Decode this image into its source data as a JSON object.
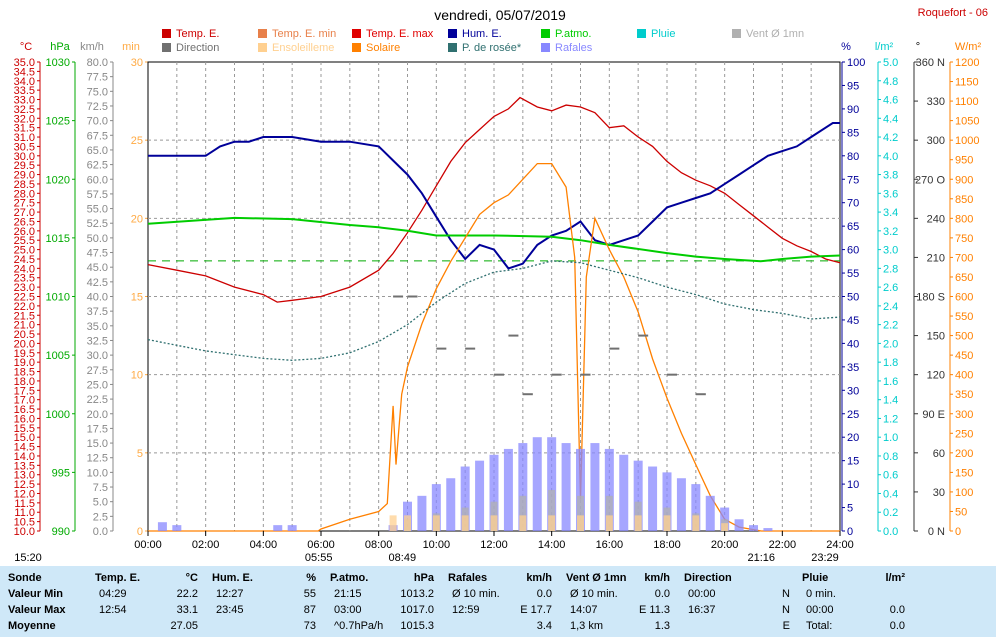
{
  "title": "vendredi, 05/07/2019",
  "station": "Roquefort - 06",
  "unit_headers": [
    "°C",
    "hPa",
    "km/h",
    "min",
    "%",
    "l/m²",
    "°",
    "W/m²"
  ],
  "legend": [
    {
      "label": "Temp. E.",
      "color": "#cc0000"
    },
    {
      "label": "Temp. E. min",
      "color": "#e8804a"
    },
    {
      "label": "Temp. E. max",
      "color": "#e00000"
    },
    {
      "label": "P.atmo.",
      "color": "#00cc00"
    },
    {
      "label": "Pluie",
      "color": "#00cccc"
    },
    {
      "label": "Vent Ø 1mn",
      "color": "#b0b0b0"
    },
    {
      "label": "Hum. E.",
      "color": "#000099"
    },
    {
      "label": "Direction",
      "color": "#707070"
    },
    {
      "label": "Ensoleilleme",
      "color": "#ffd090"
    },
    {
      "label": "Solaire",
      "color": "#ff8000"
    },
    {
      "label": "P. de rosée*",
      "color": "#307070"
    },
    {
      "label": "Rafales",
      "color": "#8888ff"
    }
  ],
  "chart_data": {
    "type": "line",
    "x_ticks": [
      "00:00",
      "02:00",
      "04:00",
      "06:00",
      "08:00",
      "10:00",
      "12:00",
      "14:00",
      "16:00",
      "18:00",
      "20:00",
      "22:00",
      "24:00"
    ],
    "axes": {
      "temp_c": {
        "min": 10.0,
        "max": 35.0,
        "step": 0.5
      },
      "pressure_hpa": {
        "min": 990,
        "max": 1030
      },
      "wind_kmh": {
        "min": 0.0,
        "max": 80.0,
        "step": 2.5
      },
      "sunshine_min": {
        "min": 0,
        "max": 30
      },
      "humidity_pct": {
        "min": 0,
        "max": 100
      },
      "rain_lm2": {
        "min": 0.0,
        "max": 5.0
      },
      "direction_deg": {
        "min": 0,
        "max": 360,
        "labels": [
          [
            0,
            "0  N"
          ],
          [
            30,
            "30"
          ],
          [
            60,
            "60"
          ],
          [
            90,
            "90  E"
          ],
          [
            120,
            "120"
          ],
          [
            150,
            "150"
          ],
          [
            180,
            "180  S"
          ],
          [
            210,
            "210"
          ],
          [
            240,
            "240"
          ],
          [
            270,
            "270  O"
          ],
          [
            300,
            "300"
          ],
          [
            330,
            "330"
          ],
          [
            360,
            "360  N"
          ]
        ]
      },
      "solar_wm2": {
        "min": 0,
        "max": 1200
      }
    },
    "dewpoint_ref_c": 24.4,
    "series": [
      {
        "name": "Temp. E.",
        "axis": "temp_c",
        "color": "#cc0000",
        "points": [
          [
            0,
            24.2
          ],
          [
            1,
            23.9
          ],
          [
            2,
            23.6
          ],
          [
            3,
            23.0
          ],
          [
            4,
            22.6
          ],
          [
            4.48,
            22.2
          ],
          [
            5,
            22.3
          ],
          [
            6,
            22.5
          ],
          [
            7,
            23.0
          ],
          [
            8,
            23.9
          ],
          [
            8.5,
            24.8
          ],
          [
            9,
            25.9
          ],
          [
            9.5,
            27.1
          ],
          [
            10,
            28.4
          ],
          [
            10.5,
            29.7
          ],
          [
            11,
            30.7
          ],
          [
            11.5,
            31.4
          ],
          [
            12,
            32.1
          ],
          [
            12.5,
            32.5
          ],
          [
            12.9,
            33.1
          ],
          [
            13.5,
            32.6
          ],
          [
            14,
            32.4
          ],
          [
            14.5,
            32.7
          ],
          [
            15,
            32.6
          ],
          [
            15.5,
            32.3
          ],
          [
            16,
            31.5
          ],
          [
            16.5,
            31.6
          ],
          [
            17,
            31.0
          ],
          [
            17.5,
            30.5
          ],
          [
            18,
            29.7
          ],
          [
            18.5,
            29.1
          ],
          [
            19,
            28.7
          ],
          [
            19.5,
            28.4
          ],
          [
            20,
            28.0
          ],
          [
            20.5,
            27.4
          ],
          [
            21,
            26.8
          ],
          [
            21.5,
            26.2
          ],
          [
            22,
            25.6
          ],
          [
            22.5,
            25.2
          ],
          [
            23,
            24.9
          ],
          [
            23.5,
            24.5
          ],
          [
            24,
            24.3
          ]
        ]
      },
      {
        "name": "Hum. E.",
        "axis": "humidity_pct",
        "color": "#000099",
        "points": [
          [
            0,
            80
          ],
          [
            1,
            80
          ],
          [
            2,
            80
          ],
          [
            2.5,
            82
          ],
          [
            3,
            83
          ],
          [
            3.5,
            83
          ],
          [
            4,
            84
          ],
          [
            5,
            84
          ],
          [
            6,
            83
          ],
          [
            7,
            83
          ],
          [
            8,
            82
          ],
          [
            8.5,
            79
          ],
          [
            9,
            76
          ],
          [
            9.5,
            72
          ],
          [
            10,
            67
          ],
          [
            10.5,
            62
          ],
          [
            11,
            58
          ],
          [
            11.5,
            61
          ],
          [
            12,
            60
          ],
          [
            12.5,
            56
          ],
          [
            13,
            57
          ],
          [
            13.5,
            61
          ],
          [
            14,
            63
          ],
          [
            14.5,
            64
          ],
          [
            15,
            66
          ],
          [
            15.5,
            62
          ],
          [
            16,
            61
          ],
          [
            16.5,
            62
          ],
          [
            17,
            63
          ],
          [
            17.5,
            66
          ],
          [
            18,
            69
          ],
          [
            18.5,
            70
          ],
          [
            19,
            71
          ],
          [
            19.5,
            72
          ],
          [
            20,
            74
          ],
          [
            20.5,
            76
          ],
          [
            21,
            78
          ],
          [
            21.5,
            80
          ],
          [
            22,
            81
          ],
          [
            22.5,
            82
          ],
          [
            23,
            84
          ],
          [
            23.75,
            87
          ],
          [
            24,
            87
          ]
        ]
      },
      {
        "name": "P.atmo.",
        "axis": "pressure_hpa",
        "color": "#00cc00",
        "points": [
          [
            0,
            1016.2
          ],
          [
            3,
            1016.7
          ],
          [
            5,
            1016.6
          ],
          [
            7,
            1016.1
          ],
          [
            8,
            1015.9
          ],
          [
            9,
            1015.6
          ],
          [
            10,
            1015.2
          ],
          [
            12,
            1015.2
          ],
          [
            14,
            1015.1
          ],
          [
            15,
            1014.8
          ],
          [
            16,
            1014.4
          ],
          [
            18,
            1013.7
          ],
          [
            19,
            1013.4
          ],
          [
            20,
            1013.2
          ],
          [
            21.25,
            1013.0
          ],
          [
            22,
            1013.2
          ],
          [
            23,
            1013.4
          ],
          [
            24,
            1013.5
          ]
        ]
      },
      {
        "name": "Solaire",
        "axis": "solar_wm2",
        "color": "#ff8000",
        "points": [
          [
            0,
            0
          ],
          [
            5.9,
            0
          ],
          [
            6,
            5
          ],
          [
            7,
            30
          ],
          [
            8,
            50
          ],
          [
            8.3,
            70
          ],
          [
            8.5,
            320
          ],
          [
            8.6,
            170
          ],
          [
            8.8,
            350
          ],
          [
            9,
            420
          ],
          [
            9.5,
            530
          ],
          [
            10,
            620
          ],
          [
            10.5,
            690
          ],
          [
            11,
            750
          ],
          [
            11.5,
            810
          ],
          [
            12,
            840
          ],
          [
            12.5,
            860
          ],
          [
            13,
            900
          ],
          [
            13.5,
            940
          ],
          [
            14,
            940
          ],
          [
            14.5,
            880
          ],
          [
            14.8,
            700
          ],
          [
            15,
            80
          ],
          [
            15.2,
            650
          ],
          [
            15.5,
            800
          ],
          [
            16,
            720
          ],
          [
            16.5,
            650
          ],
          [
            17,
            560
          ],
          [
            17.5,
            440
          ],
          [
            18,
            340
          ],
          [
            18.5,
            250
          ],
          [
            19,
            170
          ],
          [
            19.5,
            90
          ],
          [
            20,
            30
          ],
          [
            20.5,
            10
          ],
          [
            21.27,
            0
          ],
          [
            24,
            0
          ]
        ]
      },
      {
        "name": "P. de rosée*",
        "axis": "temp_c",
        "color": "#307070",
        "points": [
          [
            0,
            20.2
          ],
          [
            1,
            19.9
          ],
          [
            2,
            19.6
          ],
          [
            3,
            19.4
          ],
          [
            4,
            19.2
          ],
          [
            5,
            19.1
          ],
          [
            6,
            19.2
          ],
          [
            7,
            19.5
          ],
          [
            8,
            20.1
          ],
          [
            9,
            21.0
          ],
          [
            10,
            22.2
          ],
          [
            11,
            23.2
          ],
          [
            12,
            23.8
          ],
          [
            13,
            24.0
          ],
          [
            14,
            24.4
          ],
          [
            15,
            24.3
          ],
          [
            16,
            23.9
          ],
          [
            17,
            23.5
          ],
          [
            18,
            23.0
          ],
          [
            19,
            22.6
          ],
          [
            20,
            22.1
          ],
          [
            21,
            21.8
          ],
          [
            22,
            21.6
          ],
          [
            23,
            21.3
          ],
          [
            24,
            21.4
          ]
        ]
      },
      {
        "name": "Rafales",
        "axis": "wind_kmh",
        "color": "#8888ff",
        "type": "bars",
        "points": [
          [
            0.5,
            1.5
          ],
          [
            1,
            1.0
          ],
          [
            4.5,
            1.0
          ],
          [
            5,
            1.0
          ],
          [
            8.5,
            1.0
          ],
          [
            9,
            5
          ],
          [
            9.5,
            6
          ],
          [
            10,
            8
          ],
          [
            10.5,
            9
          ],
          [
            11,
            11
          ],
          [
            11.5,
            12
          ],
          [
            12,
            13
          ],
          [
            12.5,
            14
          ],
          [
            13,
            15
          ],
          [
            13.5,
            16
          ],
          [
            14,
            16
          ],
          [
            14.5,
            15
          ],
          [
            15,
            14
          ],
          [
            15.5,
            15
          ],
          [
            16,
            14
          ],
          [
            16.5,
            13
          ],
          [
            17,
            12
          ],
          [
            17.5,
            11
          ],
          [
            18,
            10
          ],
          [
            18.5,
            9
          ],
          [
            19,
            8
          ],
          [
            19.5,
            6
          ],
          [
            20,
            4
          ],
          [
            20.5,
            2
          ],
          [
            21,
            1
          ],
          [
            21.5,
            0.5
          ]
        ]
      },
      {
        "name": "Vent Ø 1mn",
        "axis": "wind_kmh",
        "color": "#b0b0b0",
        "type": "bars",
        "points": [
          [
            9,
            2
          ],
          [
            10,
            3
          ],
          [
            11,
            4
          ],
          [
            12,
            5
          ],
          [
            13,
            6
          ],
          [
            14,
            7
          ],
          [
            15,
            6
          ],
          [
            16,
            6
          ],
          [
            17,
            5
          ],
          [
            18,
            4
          ],
          [
            19,
            3
          ],
          [
            20,
            2
          ]
        ]
      },
      {
        "name": "Ensoleilleme",
        "axis": "sunshine_min",
        "color": "#ffd090",
        "type": "bars",
        "points": [
          [
            8.5,
            1
          ],
          [
            9,
            1
          ],
          [
            10,
            1
          ],
          [
            11,
            1
          ],
          [
            12,
            1
          ],
          [
            13,
            1
          ],
          [
            14,
            1
          ],
          [
            15,
            1
          ],
          [
            16,
            1
          ],
          [
            17,
            1
          ],
          [
            18,
            1
          ],
          [
            19,
            1
          ],
          [
            20,
            0.5
          ]
        ]
      },
      {
        "name": "Direction",
        "axis": "direction_deg",
        "color": "#707070",
        "type": "dots",
        "points": [
          [
            8.5,
            180
          ],
          [
            9,
            180
          ],
          [
            10,
            140
          ],
          [
            11,
            140
          ],
          [
            12,
            120
          ],
          [
            12.5,
            150
          ],
          [
            13,
            105
          ],
          [
            14,
            120
          ],
          [
            15,
            120
          ],
          [
            16,
            140
          ],
          [
            17,
            150
          ],
          [
            18,
            120
          ],
          [
            19,
            105
          ]
        ]
      }
    ],
    "annotations": [
      {
        "text": "15:20",
        "x": 0
      },
      {
        "text": "05:55",
        "x": 5.92
      },
      {
        "text": "08:49",
        "x": 8.82
      },
      {
        "text": "21:16",
        "x": 21.27
      },
      {
        "text": "23:29",
        "x": 23.48
      }
    ]
  },
  "summary": {
    "columns": [
      {
        "header": "Sonde",
        "unit": ""
      },
      {
        "header": "Temp. E.",
        "unit": "°C"
      },
      {
        "header": "Hum. E.",
        "unit": "%"
      },
      {
        "header": "P.atmo.",
        "unit": "hPa"
      },
      {
        "header": "Rafales",
        "unit": "km/h"
      },
      {
        "header": "Vent Ø 1mn",
        "unit": "km/h"
      },
      {
        "header": "Direction",
        "unit": ""
      },
      {
        "header": "Pluie",
        "unit": "l/m²"
      }
    ],
    "rows": [
      {
        "label": "Valeur Min",
        "cells": [
          [
            "04:29",
            "22.2"
          ],
          [
            "12:27",
            "55"
          ],
          [
            "21:15",
            "1013.2"
          ],
          [
            "Ø 10 min.",
            "0.0"
          ],
          [
            "Ø 10 min.",
            "0.0"
          ],
          [
            "00:00",
            "N"
          ],
          [
            "0 min.",
            ""
          ]
        ]
      },
      {
        "label": "Valeur Max",
        "cells": [
          [
            "12:54",
            "33.1"
          ],
          [
            "23:45",
            "87"
          ],
          [
            "03:00",
            "1017.0"
          ],
          [
            "12:59",
            "E 17.7"
          ],
          [
            "14:07",
            "E 11.3"
          ],
          [
            "16:37",
            "N"
          ],
          [
            "00:00",
            "0.0"
          ]
        ]
      },
      {
        "label": "Moyenne",
        "cells": [
          [
            "",
            "27.05"
          ],
          [
            "",
            "73"
          ],
          [
            "^0.7hPa/h",
            "1015.3"
          ],
          [
            "",
            "3.4"
          ],
          [
            "1,3 km",
            "1.3"
          ],
          [
            "",
            "E"
          ],
          [
            "Total:",
            "0.0"
          ]
        ]
      }
    ]
  }
}
